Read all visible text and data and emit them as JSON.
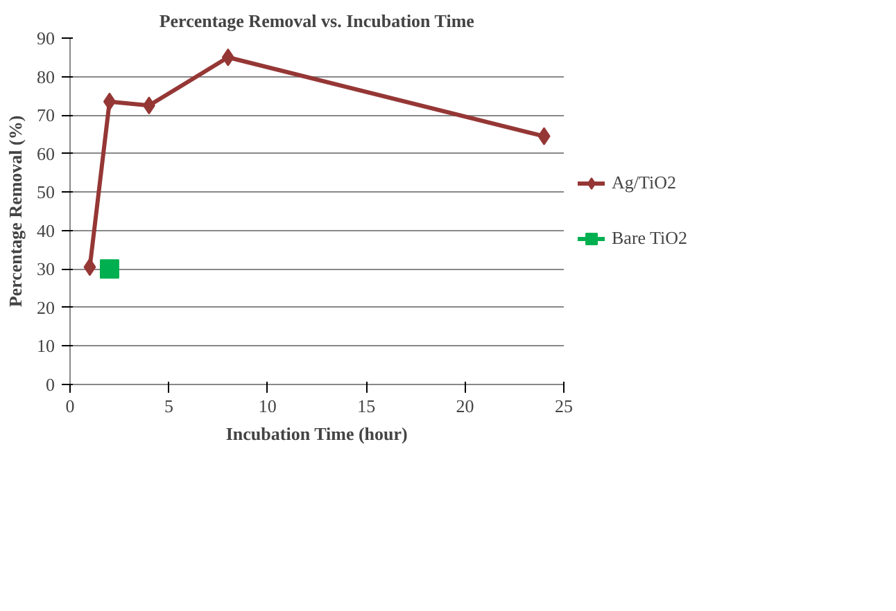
{
  "chart_data": {
    "type": "line",
    "title": "Percentage Removal vs. Incubation Time",
    "xlabel": "Incubation Time (hour)",
    "ylabel": "Percentage Removal (%)",
    "xlim": [
      0,
      25
    ],
    "xticks": [
      0,
      5,
      10,
      15,
      20,
      25
    ],
    "ylim": [
      0,
      90
    ],
    "yticks": [
      0,
      10,
      20,
      30,
      40,
      50,
      60,
      70,
      80,
      90
    ],
    "grid": "y",
    "legend": "right",
    "line_style": "solid",
    "series": [
      {
        "name": "Ag/TiO2",
        "color": "#953735",
        "marker": "diamond",
        "x": [
          1,
          2,
          4,
          8,
          24
        ],
        "values": [
          30.5,
          73.5,
          72.5,
          85,
          64.5
        ]
      },
      {
        "name": "Bare TiO2",
        "color": "#00b050",
        "marker": "square",
        "x": [
          2
        ],
        "values": [
          30
        ]
      }
    ]
  }
}
